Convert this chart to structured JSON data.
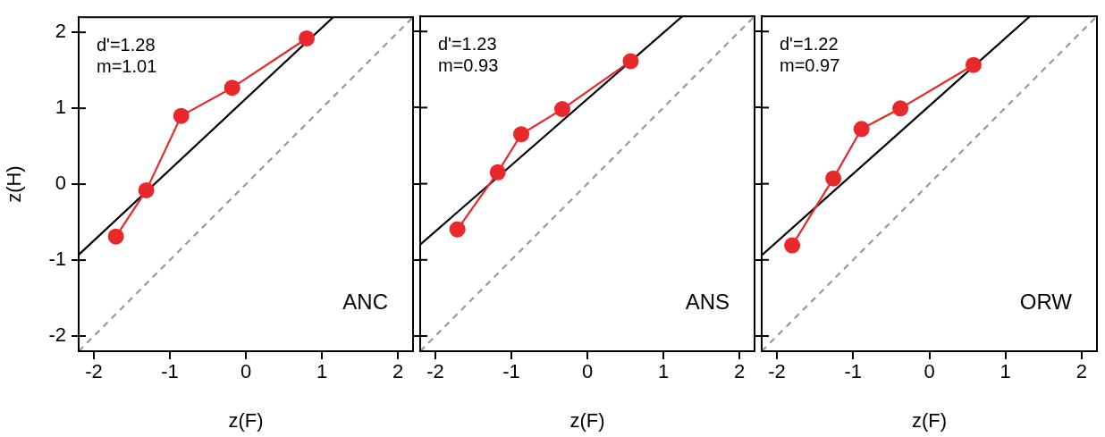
{
  "chart_data": [
    {
      "type": "line",
      "xlabel": "z(F)",
      "ylabel": "z(H)",
      "xlim": [
        -2.2,
        2.2
      ],
      "ylim": [
        -2.2,
        2.2
      ],
      "xticks": [
        -2,
        -1,
        0,
        1,
        2
      ],
      "yticks": [
        -2,
        -1,
        0,
        1,
        2
      ],
      "grid": false,
      "legend": false,
      "annotations": [
        "d'=1.28",
        "m=1.01",
        "ANC"
      ],
      "series": [
        {
          "type": "line",
          "color": "#999999",
          "x": [
            -2.2,
            2.2
          ],
          "values": [
            -2.2,
            2.2
          ],
          "line_style": "dashed",
          "marker": "none"
        },
        {
          "type": "line",
          "color": "#000000",
          "x": [
            -2.2,
            1.15
          ],
          "values": [
            -0.93,
            2.2
          ],
          "line_style": "solid",
          "marker": "none"
        },
        {
          "type": "line",
          "color": "#e8282b",
          "x": [
            -1.71,
            -1.31,
            -0.85,
            -0.18,
            0.8
          ],
          "values": [
            -0.69,
            -0.08,
            0.9,
            1.27,
            1.92
          ],
          "line_style": "solid",
          "marker": "circle"
        }
      ]
    },
    {
      "type": "line",
      "xlabel": "z(F)",
      "xlim": [
        -2.2,
        2.2
      ],
      "ylim": [
        -2.2,
        2.2
      ],
      "xticks": [
        -2,
        -1,
        0,
        1,
        2
      ],
      "yticks": [
        -2,
        -1,
        0,
        1,
        2
      ],
      "tick_labels": "x",
      "grid": false,
      "legend": false,
      "annotations": [
        "d'=1.23",
        "m=0.93",
        "ANS"
      ],
      "series": [
        {
          "type": "line",
          "color": "#999999",
          "x": [
            -2.2,
            2.2
          ],
          "values": [
            -2.2,
            2.2
          ],
          "line_style": "dashed",
          "marker": "none"
        },
        {
          "type": "line",
          "color": "#000000",
          "x": [
            -2.2,
            1.25
          ],
          "values": [
            -0.8,
            2.2
          ],
          "line_style": "solid",
          "marker": "none"
        },
        {
          "type": "line",
          "color": "#e8282b",
          "x": [
            -1.71,
            -1.18,
            -0.87,
            -0.33,
            0.57
          ],
          "values": [
            -0.6,
            0.15,
            0.65,
            0.98,
            1.61
          ],
          "line_style": "solid",
          "marker": "circle"
        }
      ]
    },
    {
      "type": "line",
      "xlabel": "z(F)",
      "xlim": [
        -2.2,
        2.2
      ],
      "ylim": [
        -2.2,
        2.2
      ],
      "xticks": [
        -2,
        -1,
        0,
        1,
        2
      ],
      "yticks": [
        -2,
        -1,
        0,
        1,
        2
      ],
      "tick_labels": "x",
      "grid": false,
      "legend": false,
      "annotations": [
        "d'=1.22",
        "m=0.97",
        "ORW"
      ],
      "series": [
        {
          "type": "line",
          "color": "#999999",
          "x": [
            -2.2,
            2.2
          ],
          "values": [
            -2.2,
            2.2
          ],
          "line_style": "dashed",
          "marker": "none"
        },
        {
          "type": "line",
          "color": "#000000",
          "x": [
            -2.2,
            1.32
          ],
          "values": [
            -0.94,
            2.2
          ],
          "line_style": "solid",
          "marker": "none"
        },
        {
          "type": "line",
          "color": "#e8282b",
          "x": [
            -1.8,
            -1.26,
            -0.89,
            -0.38,
            0.58
          ],
          "values": [
            -0.81,
            0.07,
            0.72,
            0.99,
            1.56
          ],
          "line_style": "solid",
          "marker": "circle"
        }
      ]
    }
  ]
}
